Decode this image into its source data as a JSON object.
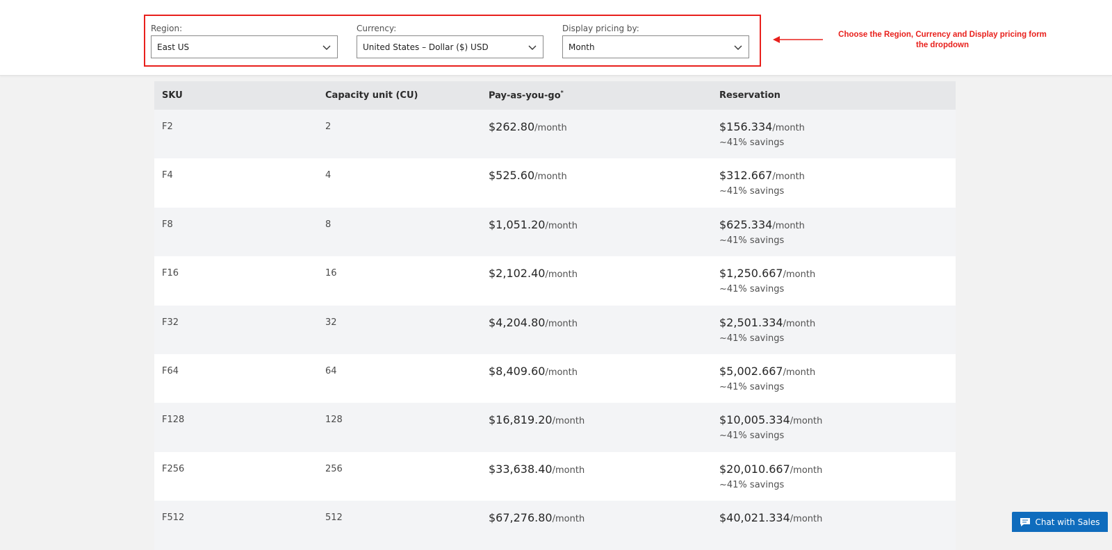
{
  "filters": {
    "region": {
      "label": "Region:",
      "value": "East US"
    },
    "currency": {
      "label": "Currency:",
      "value": "United States – Dollar ($) USD"
    },
    "display": {
      "label": "Display pricing by:",
      "value": "Month"
    }
  },
  "annotation": {
    "text": "Choose the Region, Currency and Display pricing form the dropdown",
    "color": "#e8201c"
  },
  "table": {
    "headers": [
      "SKU",
      "Capacity unit (CU)",
      "Pay-as-you-go",
      "Reservation"
    ],
    "payg_footnote": "*",
    "rows": [
      {
        "sku": "F2",
        "cu": "2",
        "payg": "$262.80",
        "payg_unit": "/month",
        "res": "$156.334",
        "res_unit": "/month",
        "savings": "~41% savings"
      },
      {
        "sku": "F4",
        "cu": "4",
        "payg": "$525.60",
        "payg_unit": "/month",
        "res": "$312.667",
        "res_unit": "/month",
        "savings": "~41% savings"
      },
      {
        "sku": "F8",
        "cu": "8",
        "payg": "$1,051.20",
        "payg_unit": "/month",
        "res": "$625.334",
        "res_unit": "/month",
        "savings": "~41% savings"
      },
      {
        "sku": "F16",
        "cu": "16",
        "payg": "$2,102.40",
        "payg_unit": "/month",
        "res": "$1,250.667",
        "res_unit": "/month",
        "savings": "~41% savings"
      },
      {
        "sku": "F32",
        "cu": "32",
        "payg": "$4,204.80",
        "payg_unit": "/month",
        "res": "$2,501.334",
        "res_unit": "/month",
        "savings": "~41% savings"
      },
      {
        "sku": "F64",
        "cu": "64",
        "payg": "$8,409.60",
        "payg_unit": "/month",
        "res": "$5,002.667",
        "res_unit": "/month",
        "savings": "~41% savings"
      },
      {
        "sku": "F128",
        "cu": "128",
        "payg": "$16,819.20",
        "payg_unit": "/month",
        "res": "$10,005.334",
        "res_unit": "/month",
        "savings": "~41% savings"
      },
      {
        "sku": "F256",
        "cu": "256",
        "payg": "$33,638.40",
        "payg_unit": "/month",
        "res": "$20,010.667",
        "res_unit": "/month",
        "savings": "~41% savings"
      },
      {
        "sku": "F512",
        "cu": "512",
        "payg": "$67,276.80",
        "payg_unit": "/month",
        "res": "$40,021.334",
        "res_unit": "/month",
        "savings": ""
      }
    ]
  },
  "chat": {
    "label": "Chat with Sales",
    "icon": "chat-bubble-icon",
    "color": "#0f6cbd"
  }
}
